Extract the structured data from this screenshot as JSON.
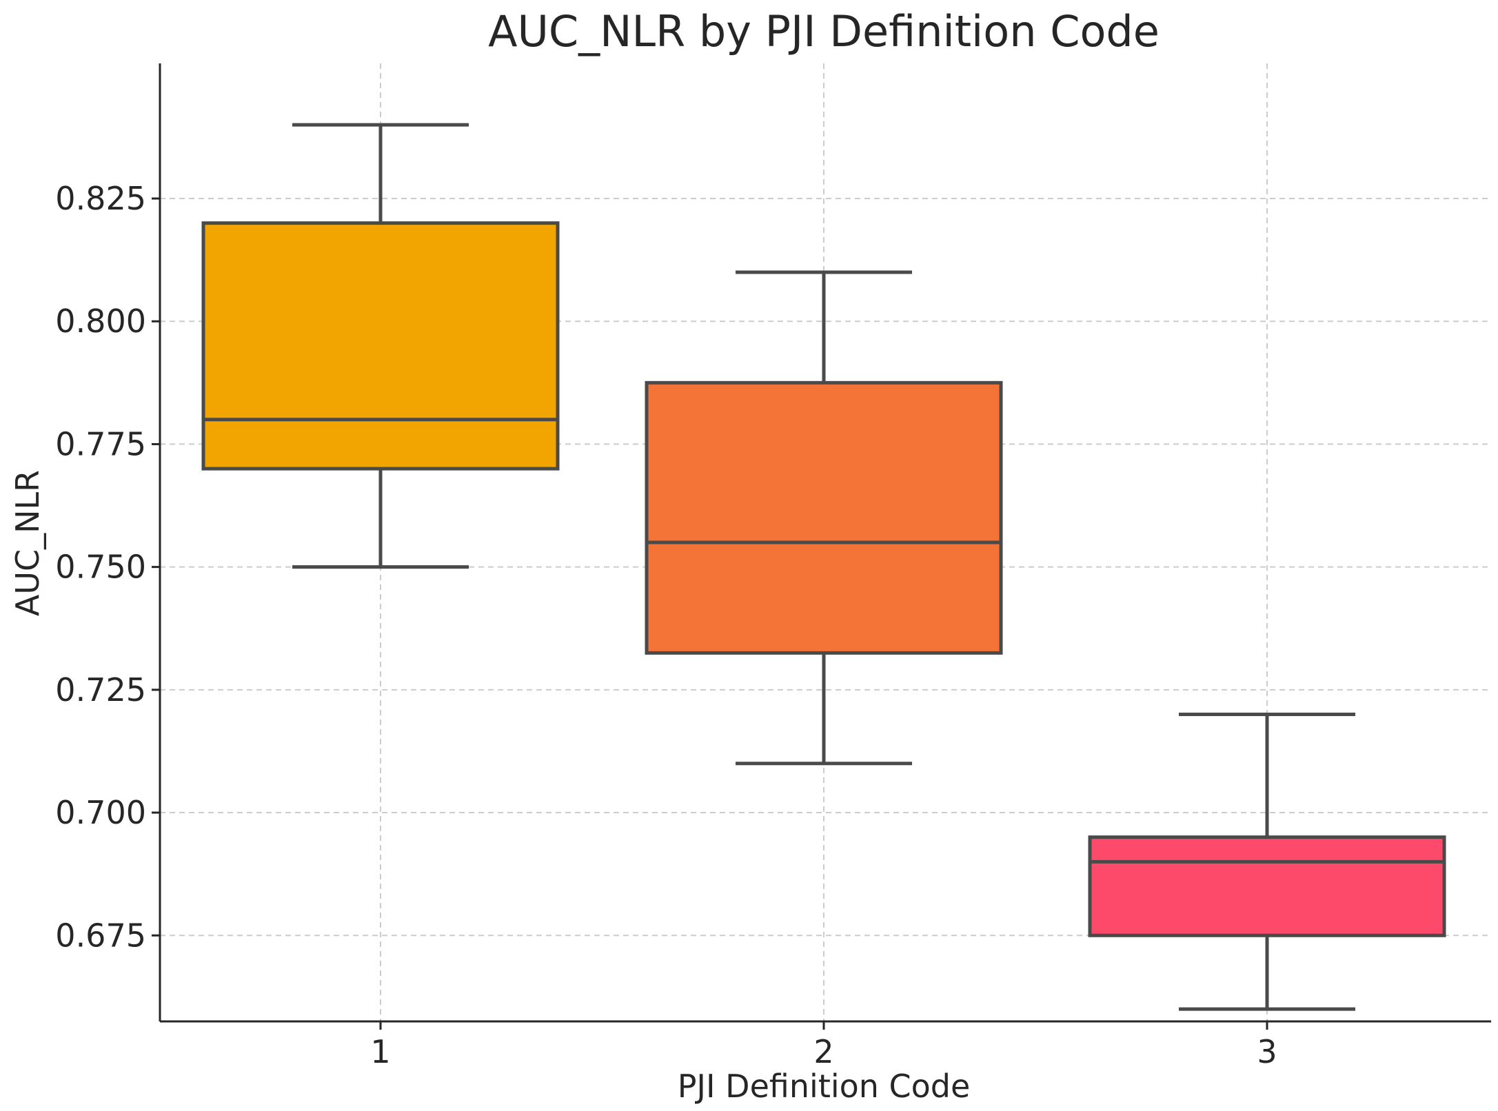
{
  "chart_data": {
    "type": "box",
    "title": "AUC_NLR by PJI Definition Code",
    "xlabel": "PJI Definition Code",
    "ylabel": "AUC_NLR",
    "ylim": [
      0.6575,
      0.8525
    ],
    "yticks": [
      0.675,
      0.7,
      0.725,
      0.75,
      0.775,
      0.8,
      0.825
    ],
    "ytick_labels": [
      "0.675",
      "0.700",
      "0.725",
      "0.750",
      "0.775",
      "0.800",
      "0.825"
    ],
    "grid": true,
    "categories": [
      "1",
      "2",
      "3"
    ],
    "boxes": [
      {
        "category": "1",
        "whisker_low": 0.75,
        "q1": 0.77,
        "median": 0.78,
        "q3": 0.82,
        "whisker_high": 0.84,
        "color": "#F2A500"
      },
      {
        "category": "2",
        "whisker_low": 0.71,
        "q1": 0.7325,
        "median": 0.755,
        "q3": 0.7875,
        "whisker_high": 0.81,
        "color": "#F47336"
      },
      {
        "category": "3",
        "whisker_low": 0.66,
        "q1": 0.675,
        "median": 0.69,
        "q3": 0.695,
        "whisker_high": 0.72,
        "color": "#FE4A6A"
      }
    ]
  }
}
